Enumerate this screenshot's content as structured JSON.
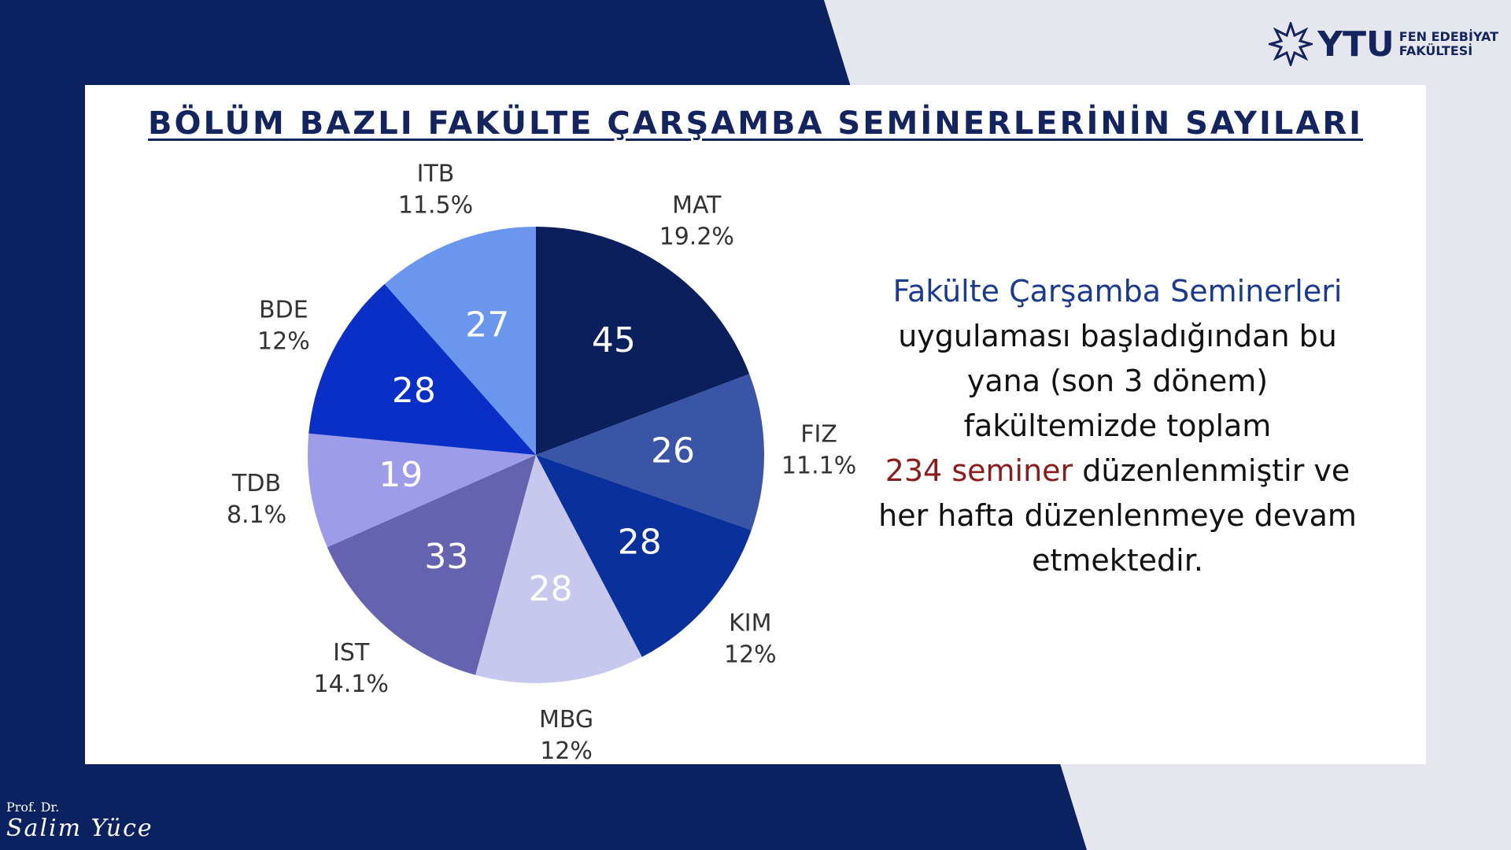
{
  "chart_data": {
    "type": "pie",
    "title": "BÖLÜM BAZLI FAKÜLTE ÇARŞAMBA SEMİNERLERİNİN SAYILARI",
    "categories": [
      "MAT",
      "FIZ",
      "KIM",
      "MBG",
      "IST",
      "TDB",
      "BDE",
      "ITB"
    ],
    "values": [
      45,
      26,
      28,
      28,
      33,
      19,
      28,
      27
    ],
    "percent_labels": [
      "19.2%",
      "11.1%",
      "12%",
      "12%",
      "14.1%",
      "8.1%",
      "12%",
      "11.5%"
    ],
    "colors": [
      "#0b1f5c",
      "#3a55a6",
      "#09309b",
      "#c8c8ee",
      "#6562b0",
      "#9d9ce8",
      "#0a2fc6",
      "#6a96ee"
    ]
  },
  "note": {
    "heading": "Fakülte Çarşamba Seminerleri",
    "lines": [
      "uygulaması başladığından bu",
      "yana (son 3 dönem)",
      "fakültemizde toplam"
    ],
    "highlight": "234 seminer",
    "after_highlight": "düzenlenmiştir ve",
    "end_lines": [
      "her hafta düzenlenmeye devam",
      "etmektedir."
    ]
  },
  "logo": {
    "mark": "YTU",
    "line1": "FEN EDEBİYAT",
    "line2": "FAKÜLTESİ"
  },
  "signature": {
    "title": "Prof. Dr.",
    "name": "Salim Yüce"
  }
}
